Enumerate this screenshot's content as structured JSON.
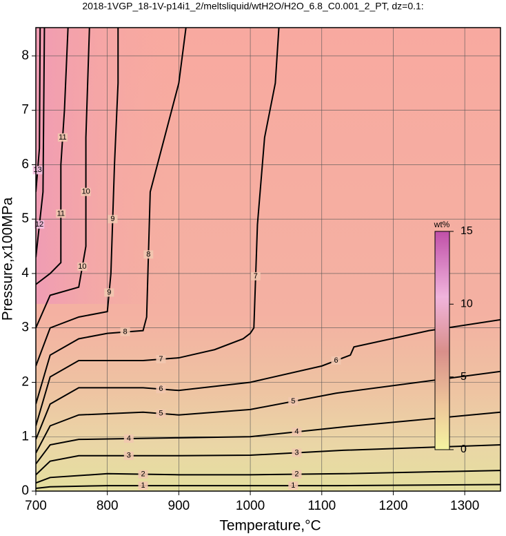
{
  "chart_data": {
    "type": "contour",
    "title": "2018-1VGP_18-1V-p14i1_2/meltsliquid/wtH2O/H2O_6.8_C0.001_2_PT, dz=0.1:",
    "xlabel": "Temperature,°C",
    "ylabel": "Pressure,x100MPa",
    "xlim": [
      700,
      1350
    ],
    "ylim": [
      0,
      8.52
    ],
    "xticks": [
      700,
      800,
      900,
      1000,
      1100,
      1200,
      1300
    ],
    "yticks": [
      0,
      1,
      2,
      3,
      4,
      5,
      6,
      7,
      8
    ],
    "grid": true,
    "contours": [
      {
        "level": 1,
        "x": [
          700,
          720,
          800,
          900,
          1000,
          1120,
          1350
        ],
        "y": [
          0.05,
          0.08,
          0.1,
          0.1,
          0.1,
          0.1,
          0.12
        ]
      },
      {
        "level": 2,
        "x": [
          700,
          720,
          800,
          900,
          1000,
          1130,
          1350
        ],
        "y": [
          0.15,
          0.25,
          0.32,
          0.3,
          0.3,
          0.32,
          0.38
        ]
      },
      {
        "level": 3,
        "x": [
          700,
          720,
          760,
          900,
          1000,
          1130,
          1350
        ],
        "y": [
          0.3,
          0.55,
          0.65,
          0.65,
          0.66,
          0.75,
          0.85
        ]
      },
      {
        "level": 4,
        "x": [
          700,
          720,
          760,
          900,
          1000,
          1130,
          1350
        ],
        "y": [
          0.5,
          0.85,
          0.95,
          0.98,
          1.0,
          1.18,
          1.45
        ]
      },
      {
        "level": 5,
        "x": [
          700,
          720,
          760,
          850,
          900,
          1000,
          1120,
          1350
        ],
        "y": [
          0.7,
          1.2,
          1.4,
          1.45,
          1.4,
          1.5,
          1.8,
          2.2
        ]
      },
      {
        "level": 6,
        "x": [
          700,
          720,
          760,
          850,
          900,
          1000,
          1100,
          1140,
          1145,
          1250,
          1350
        ],
        "y": [
          0.95,
          1.6,
          1.9,
          1.9,
          1.85,
          2.0,
          2.3,
          2.5,
          2.65,
          2.95,
          3.15
        ]
      },
      {
        "level": 7,
        "x": [
          700,
          720,
          760,
          850,
          900,
          950,
          990,
          1000,
          1005,
          1010,
          1020,
          1035,
          1040
        ],
        "y": [
          1.2,
          2.1,
          2.4,
          2.4,
          2.45,
          2.6,
          2.8,
          2.9,
          3.0,
          4.9,
          6.5,
          7.5,
          8.52
        ]
      },
      {
        "level": 8,
        "x": [
          700,
          720,
          760,
          800,
          850,
          855,
          860,
          880,
          900,
          910
        ],
        "y": [
          1.6,
          2.5,
          2.8,
          2.9,
          2.95,
          3.2,
          5.5,
          6.5,
          7.5,
          8.52
        ]
      },
      {
        "level": 9,
        "x": [
          700,
          720,
          760,
          800,
          805,
          810,
          815,
          815
        ],
        "y": [
          2.3,
          3.0,
          3.2,
          3.3,
          4.0,
          6.0,
          7.5,
          8.52
        ]
      },
      {
        "level": 10,
        "x": [
          700,
          720,
          760,
          770,
          770,
          775
        ],
        "y": [
          3.0,
          3.6,
          3.75,
          4.5,
          6.5,
          8.52
        ]
      },
      {
        "level": 11,
        "x": [
          700,
          720,
          735,
          735,
          740,
          745
        ],
        "y": [
          3.8,
          4.0,
          4.2,
          6.0,
          7.0,
          8.52
        ]
      },
      {
        "level": 12,
        "x": [
          700,
          710,
          712
        ],
        "y": [
          4.3,
          5.5,
          8.52
        ]
      },
      {
        "level": 13,
        "x": [
          700,
          705,
          706
        ],
        "y": [
          5.5,
          6.3,
          8.52
        ]
      }
    ],
    "colorbar": {
      "label": "wt%",
      "lim": [
        0,
        15
      ],
      "ticks": [
        0,
        5,
        10,
        15
      ]
    }
  }
}
